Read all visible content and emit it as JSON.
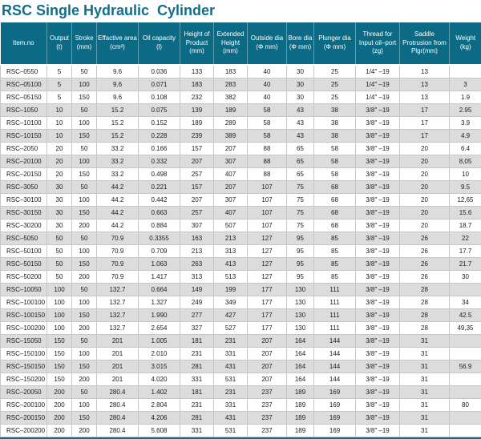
{
  "title": "RSC Single Hydraulic  Cylinder",
  "colors": {
    "accent_teal": "#0c6a84",
    "title_teal": "#106e8c",
    "row_alt_gray": "#dcdcdc"
  },
  "table": {
    "columns": [
      {
        "key": "item_no",
        "label": "Item.no"
      },
      {
        "key": "output",
        "label": "Output\n(t)"
      },
      {
        "key": "stroke",
        "label": "Stroke\n(mm)"
      },
      {
        "key": "effective_area",
        "label": "Effactive area\n(cm²)"
      },
      {
        "key": "oil_capacity",
        "label": "Oil capacity\n(l)"
      },
      {
        "key": "height_of_product",
        "label": "Height of\nProduct\n(mm)"
      },
      {
        "key": "extended_height",
        "label": "Extended\nHeight\n(mm)"
      },
      {
        "key": "outside_dia",
        "label": "Outside dia\n(Φ mm)"
      },
      {
        "key": "bore_dia",
        "label": "Bore dia\n(Φ mm)"
      },
      {
        "key": "plunger_dia",
        "label": "Plunger dia\n(Φ mm)"
      },
      {
        "key": "thread",
        "label": "Thread for\nInput oil–port\n(zg)"
      },
      {
        "key": "saddle",
        "label": "Saddle\nProtrusion from\nPlgr(mm)"
      },
      {
        "key": "weight",
        "label": "Weight\n(kg)"
      }
    ],
    "rows": [
      [
        "RSC–0550",
        "5",
        "50",
        "9.6",
        "0.036",
        "133",
        "183",
        "40",
        "30",
        "25",
        "1/4″ –19",
        "13",
        ""
      ],
      [
        "RSC–05100",
        "5",
        "100",
        "9.6",
        "0.071",
        "183",
        "283",
        "40",
        "30",
        "25",
        "1/4″ –19",
        "13",
        "3"
      ],
      [
        "RSC–05150",
        "5",
        "150",
        "9.6",
        "0.108",
        "232",
        "382",
        "40",
        "30",
        "25",
        "1/4″ –19",
        "13",
        "1.9"
      ],
      [
        "RSC–1050",
        "10",
        "50",
        "15.2",
        "0.075",
        "139",
        "189",
        "58",
        "43",
        "38",
        "3/8″ –19",
        "17",
        "2.95"
      ],
      [
        "RSC–10100",
        "10",
        "100",
        "15.2",
        "0.152",
        "189",
        "289",
        "58",
        "43",
        "38",
        "3/8″ –19",
        "17",
        "3.9"
      ],
      [
        "RSC–10150",
        "10",
        "150",
        "15.2",
        "0.228",
        "239",
        "389",
        "58",
        "43",
        "38",
        "3/8″ –19",
        "17",
        "4.9"
      ],
      [
        "RSC–2050",
        "20",
        "50",
        "33.2",
        "0.166",
        "157",
        "207",
        "88",
        "65",
        "58",
        "3/8″ –19",
        "20",
        "6.4"
      ],
      [
        "RSC–20100",
        "20",
        "100",
        "33.2",
        "0.332",
        "207",
        "307",
        "88",
        "65",
        "58",
        "3/8″ –19",
        "20",
        "8,05"
      ],
      [
        "RSC–20150",
        "20",
        "150",
        "33.2",
        "0.498",
        "257",
        "407",
        "88",
        "65",
        "58",
        "3/8″ –19",
        "20",
        "10"
      ],
      [
        "RSC–3050",
        "30",
        "50",
        "44.2",
        "0.221",
        "157",
        "207",
        "107",
        "75",
        "68",
        "3/8″ –19",
        "20",
        "9.5"
      ],
      [
        "RSC–30100",
        "30",
        "100",
        "44.2",
        "0.442",
        "207",
        "307",
        "107",
        "75",
        "68",
        "3/8″ –19",
        "20",
        "12,65"
      ],
      [
        "RSC–30150",
        "30",
        "150",
        "44.2",
        "0.663",
        "257",
        "407",
        "107",
        "75",
        "68",
        "3/8″ –19",
        "20",
        "15.6"
      ],
      [
        "RSC–30200",
        "30",
        "200",
        "44.2",
        "0.884",
        "307",
        "507",
        "107",
        "75",
        "68",
        "3/8″ –19",
        "20",
        "18.7"
      ],
      [
        "RSC–5050",
        "50",
        "50",
        "70.9",
        "0.3355",
        "163",
        "213",
        "127",
        "95",
        "85",
        "3/8″ –19",
        "26",
        "22"
      ],
      [
        "RSC–50100",
        "50",
        "100",
        "70.9",
        "0.709",
        "213",
        "313",
        "127",
        "95",
        "85",
        "3/8″ –19",
        "26",
        "17.7"
      ],
      [
        "RSC–50150",
        "50",
        "150",
        "70.9",
        "1.063",
        "263",
        "413",
        "127",
        "95",
        "85",
        "3/8″ –19",
        "26",
        "21.7"
      ],
      [
        "RSC–50200",
        "50",
        "200",
        "70.9",
        "1.417",
        "313",
        "513",
        "127",
        "95",
        "85",
        "3/8″ –19",
        "26",
        "30"
      ],
      [
        "RSC–10050",
        "100",
        "50",
        "132.7",
        "0.664",
        "149",
        "199",
        "177",
        "130",
        "111",
        "3/8″ –19",
        "28",
        ""
      ],
      [
        "RSC–100100",
        "100",
        "100",
        "132.7",
        "1.327",
        "249",
        "349",
        "177",
        "130",
        "111",
        "3/8″ –19",
        "28",
        "34"
      ],
      [
        "RSC–100150",
        "100",
        "150",
        "132.7",
        "1.990",
        "277",
        "427",
        "177",
        "130",
        "111",
        "3/8″ –19",
        "28",
        "42.5"
      ],
      [
        "RSC–100200",
        "100",
        "200",
        "132.7",
        "2.654",
        "327",
        "527",
        "177",
        "130",
        "111",
        "3/8″ –19",
        "28",
        "49,35"
      ],
      [
        "RSC–15050",
        "150",
        "50",
        "201",
        "1.005",
        "181",
        "231",
        "207",
        "164",
        "144",
        "3/8″ –19",
        "31",
        ""
      ],
      [
        "RSC–150100",
        "150",
        "100",
        "201",
        "2.010",
        "231",
        "331",
        "207",
        "164",
        "144",
        "3/8″ –19",
        "31",
        ""
      ],
      [
        "RSC–150150",
        "150",
        "150",
        "201",
        "3.015",
        "281",
        "431",
        "207",
        "164",
        "144",
        "3/8″ –19",
        "31",
        "56.9"
      ],
      [
        "RSC–150200",
        "150",
        "200",
        "201",
        "4.020",
        "331",
        "531",
        "207",
        "164",
        "144",
        "3/8″ –19",
        "31",
        ""
      ],
      [
        "RSC–20050",
        "200",
        "50",
        "280.4",
        "1.402",
        "181",
        "231",
        "237",
        "189",
        "169",
        "3/8″ –19",
        "31",
        ""
      ],
      [
        "RSC–200100",
        "200",
        "100",
        "280.4",
        "2.804",
        "231",
        "331",
        "237",
        "189",
        "169",
        "3/8″ –19",
        "31",
        "80"
      ],
      [
        "RSC–200150",
        "200",
        "150",
        "280.4",
        "4.206",
        "281",
        "431",
        "237",
        "189",
        "169",
        "3/8″ –19",
        "31",
        ""
      ],
      [
        "RSC–200200",
        "200",
        "200",
        "280.4",
        "5.608",
        "331",
        "531",
        "237",
        "189",
        "169",
        "3/8″ –19",
        "31",
        ""
      ]
    ]
  }
}
